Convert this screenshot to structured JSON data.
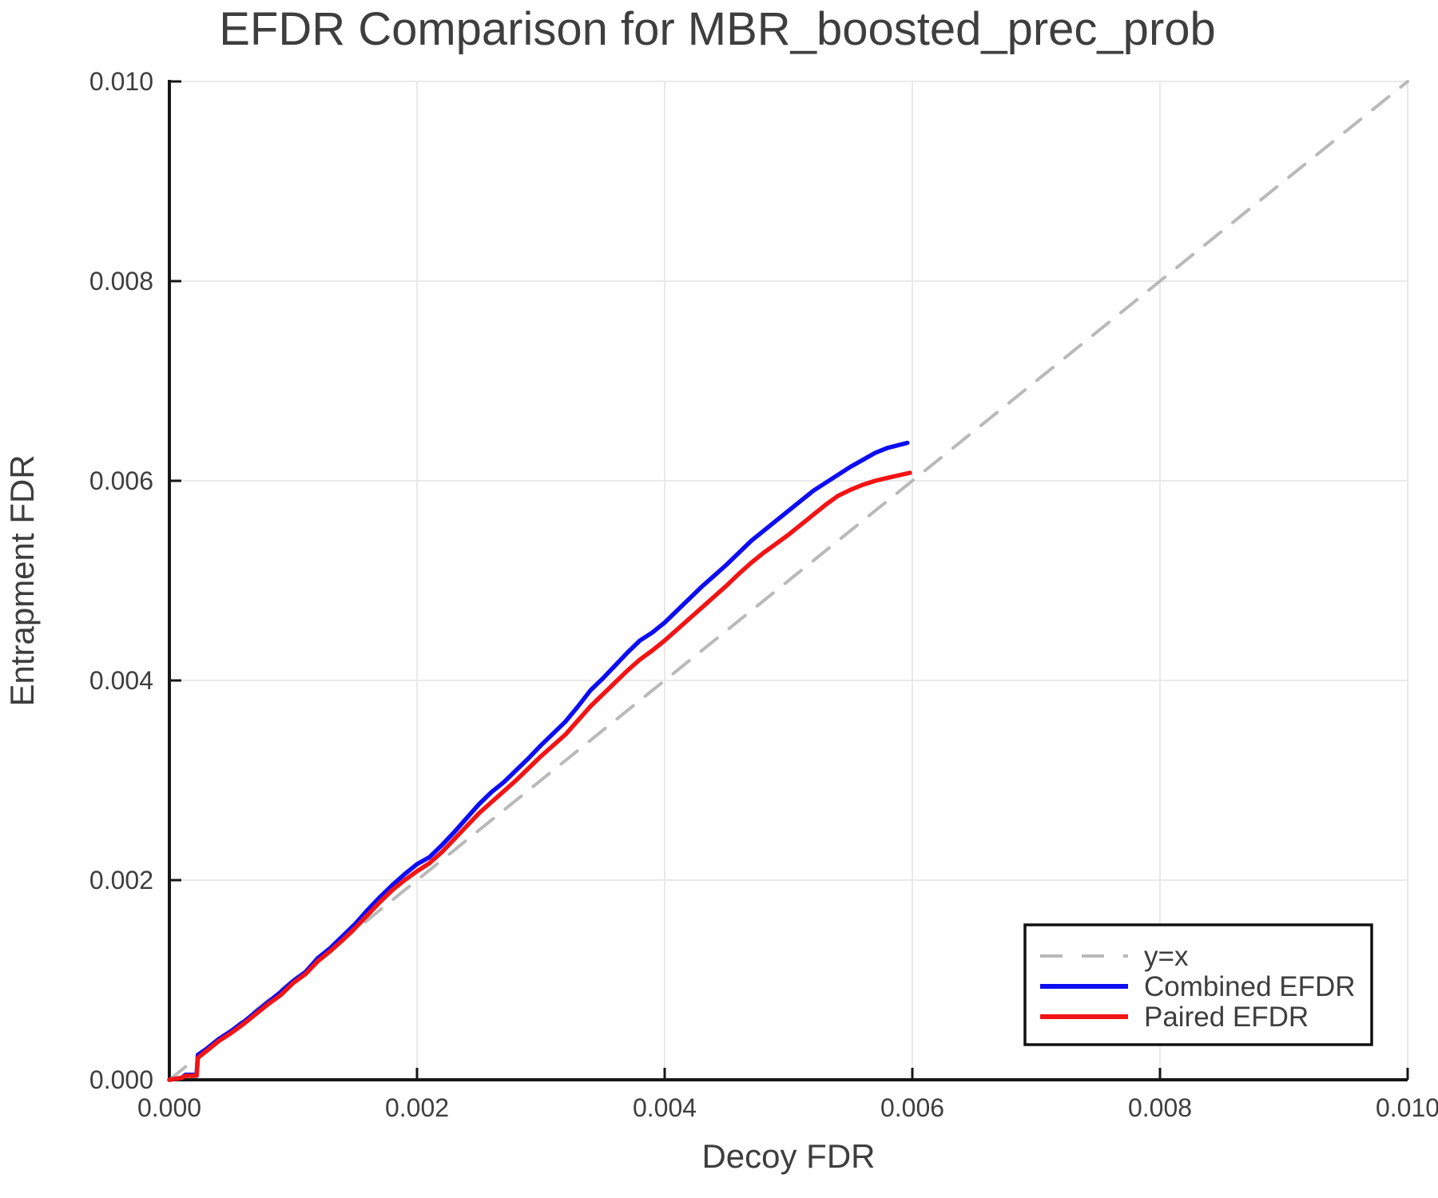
{
  "chart_data": {
    "type": "line",
    "title": "EFDR Comparison for MBR_boosted_prec_prob",
    "xlabel": "Decoy FDR",
    "ylabel": "Entrapment FDR",
    "xlim": [
      0.0,
      0.01
    ],
    "ylim": [
      0.0,
      0.01
    ],
    "xticks": [
      0.0,
      0.002,
      0.004,
      0.006,
      0.008,
      0.01
    ],
    "xtick_labels": [
      "0.000",
      "0.002",
      "0.004",
      "0.006",
      "0.008",
      "0.010"
    ],
    "yticks": [
      0.0,
      0.002,
      0.004,
      0.006,
      0.008,
      0.01
    ],
    "ytick_labels": [
      "0.000",
      "0.002",
      "0.004",
      "0.006",
      "0.008",
      "0.010"
    ],
    "grid": true,
    "legend_position": "bottom-right",
    "colors": {
      "grid": "#e9e9e9",
      "axis": "#161616",
      "text": "#3e3e3e",
      "identity": "#b9b9b9",
      "combined": "#0d0df2",
      "paired": "#f21414",
      "legend_border": "#111111",
      "background": "#ffffff"
    },
    "series": [
      {
        "name": "y=x",
        "style": "dashed",
        "color": "#b9b9b9",
        "width": 4,
        "points": [
          [
            0.0,
            0.0
          ],
          [
            0.01,
            0.01
          ]
        ]
      },
      {
        "name": "Combined EFDR",
        "style": "solid",
        "color": "#0d0df2",
        "width": 5.5,
        "points": [
          [
            0.0,
            0.0
          ],
          [
            0.0001,
            2e-05
          ],
          [
            0.00013,
            5e-05
          ],
          [
            0.00022,
            5e-05
          ],
          [
            0.00023,
            0.00025
          ],
          [
            0.0003,
            0.00031
          ],
          [
            0.0004,
            0.00041
          ],
          [
            0.0005,
            0.00049
          ],
          [
            0.0006,
            0.00058
          ],
          [
            0.0007,
            0.00068
          ],
          [
            0.0008,
            0.00078
          ],
          [
            0.0009,
            0.00088
          ],
          [
            0.001,
            0.00099
          ],
          [
            0.0011,
            0.00108
          ],
          [
            0.0012,
            0.00122
          ],
          [
            0.0013,
            0.00132
          ],
          [
            0.0014,
            0.00144
          ],
          [
            0.0015,
            0.00156
          ],
          [
            0.0016,
            0.0017
          ],
          [
            0.0017,
            0.00183
          ],
          [
            0.0018,
            0.00195
          ],
          [
            0.0019,
            0.00206
          ],
          [
            0.002,
            0.00216
          ],
          [
            0.0021,
            0.00223
          ],
          [
            0.0022,
            0.00235
          ],
          [
            0.0023,
            0.00248
          ],
          [
            0.0024,
            0.00262
          ],
          [
            0.0025,
            0.00276
          ],
          [
            0.0026,
            0.00288
          ],
          [
            0.0027,
            0.00298
          ],
          [
            0.0028,
            0.0031
          ],
          [
            0.0029,
            0.00322
          ],
          [
            0.003,
            0.00335
          ],
          [
            0.0031,
            0.00347
          ],
          [
            0.0032,
            0.00359
          ],
          [
            0.0033,
            0.00374
          ],
          [
            0.0034,
            0.0039
          ],
          [
            0.0035,
            0.00402
          ],
          [
            0.0036,
            0.00415
          ],
          [
            0.0037,
            0.00428
          ],
          [
            0.0038,
            0.0044
          ],
          [
            0.0039,
            0.00448
          ],
          [
            0.004,
            0.00458
          ],
          [
            0.0041,
            0.0047
          ],
          [
            0.0042,
            0.00482
          ],
          [
            0.0043,
            0.00494
          ],
          [
            0.0044,
            0.00505
          ],
          [
            0.0045,
            0.00516
          ],
          [
            0.0046,
            0.00528
          ],
          [
            0.0047,
            0.0054
          ],
          [
            0.0048,
            0.0055
          ],
          [
            0.0049,
            0.0056
          ],
          [
            0.005,
            0.0057
          ],
          [
            0.0051,
            0.0058
          ],
          [
            0.0052,
            0.0059
          ],
          [
            0.0053,
            0.00598
          ],
          [
            0.0054,
            0.00606
          ],
          [
            0.0055,
            0.00614
          ],
          [
            0.0056,
            0.00621
          ],
          [
            0.0057,
            0.00628
          ],
          [
            0.0058,
            0.00633
          ],
          [
            0.00596,
            0.00638
          ]
        ]
      },
      {
        "name": "Paired EFDR",
        "style": "solid",
        "color": "#f21414",
        "width": 5.5,
        "points": [
          [
            0.0,
            0.0
          ],
          [
            0.0001,
            2e-05
          ],
          [
            0.00013,
            4e-05
          ],
          [
            0.00022,
            4e-05
          ],
          [
            0.00023,
            0.00022
          ],
          [
            0.0003,
            0.00029
          ],
          [
            0.0004,
            0.00039
          ],
          [
            0.0005,
            0.00047
          ],
          [
            0.0006,
            0.00056
          ],
          [
            0.0007,
            0.00066
          ],
          [
            0.0008,
            0.00076
          ],
          [
            0.0009,
            0.00085
          ],
          [
            0.001,
            0.00097
          ],
          [
            0.0011,
            0.00106
          ],
          [
            0.0012,
            0.00119
          ],
          [
            0.0013,
            0.00129
          ],
          [
            0.0014,
            0.0014
          ],
          [
            0.0015,
            0.00152
          ],
          [
            0.0016,
            0.00165
          ],
          [
            0.0017,
            0.00178
          ],
          [
            0.0018,
            0.0019
          ],
          [
            0.0019,
            0.002
          ],
          [
            0.002,
            0.00209
          ],
          [
            0.0021,
            0.00217
          ],
          [
            0.0022,
            0.00228
          ],
          [
            0.0023,
            0.00241
          ],
          [
            0.0024,
            0.00254
          ],
          [
            0.0025,
            0.00267
          ],
          [
            0.0026,
            0.00278
          ],
          [
            0.0027,
            0.00289
          ],
          [
            0.0028,
            0.003
          ],
          [
            0.0029,
            0.00312
          ],
          [
            0.003,
            0.00324
          ],
          [
            0.0031,
            0.00335
          ],
          [
            0.0032,
            0.00346
          ],
          [
            0.0033,
            0.0036
          ],
          [
            0.0034,
            0.00374
          ],
          [
            0.0035,
            0.00386
          ],
          [
            0.0036,
            0.00398
          ],
          [
            0.0037,
            0.0041
          ],
          [
            0.0038,
            0.00421
          ],
          [
            0.0039,
            0.0043
          ],
          [
            0.004,
            0.0044
          ],
          [
            0.0041,
            0.00451
          ],
          [
            0.0042,
            0.00462
          ],
          [
            0.0043,
            0.00473
          ],
          [
            0.0044,
            0.00484
          ],
          [
            0.0045,
            0.00495
          ],
          [
            0.0046,
            0.00507
          ],
          [
            0.0047,
            0.00518
          ],
          [
            0.0048,
            0.00528
          ],
          [
            0.0049,
            0.00537
          ],
          [
            0.005,
            0.00546
          ],
          [
            0.0051,
            0.00556
          ],
          [
            0.0052,
            0.00566
          ],
          [
            0.0053,
            0.00576
          ],
          [
            0.0054,
            0.00585
          ],
          [
            0.0055,
            0.00591
          ],
          [
            0.0056,
            0.00596
          ],
          [
            0.0057,
            0.006
          ],
          [
            0.0058,
            0.00603
          ],
          [
            0.00598,
            0.00608
          ]
        ]
      }
    ],
    "legend": {
      "entries": [
        "y=x",
        "Combined EFDR",
        "Paired EFDR"
      ]
    }
  }
}
